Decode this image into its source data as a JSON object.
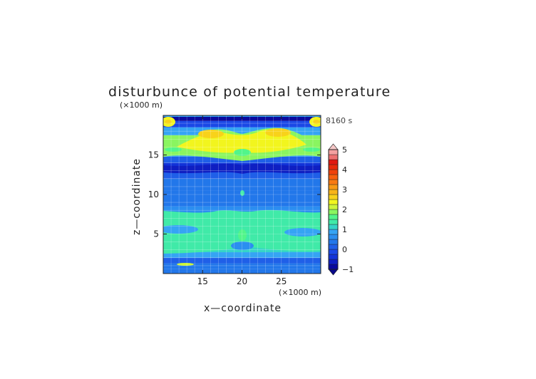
{
  "chart_data": {
    "type": "heatmap",
    "title": "disturbunce of potential temperature",
    "time_label": "8160 s",
    "xlabel": "x—coordinate",
    "ylabel": "z—coordinate",
    "x_unit": "(×1000 m)",
    "y_unit": "(×1000 m)",
    "xlim": [
      10,
      30
    ],
    "ylim": [
      0,
      20
    ],
    "x_ticks": [
      15,
      20,
      25
    ],
    "y_ticks": [
      5,
      10,
      15
    ],
    "grid": true,
    "colorbar": {
      "min": -1,
      "max": 5,
      "step": 0.25,
      "tick_values": [
        -1,
        0,
        1,
        2,
        3,
        4,
        5
      ],
      "extend": "both",
      "colors": [
        "#0a0a9e",
        "#0f1fc2",
        "#1233d8",
        "#1a48e6",
        "#1f5fe8",
        "#2277ea",
        "#2b8ef0",
        "#35a4f4",
        "#34d4c8",
        "#40eaa8",
        "#52f58a",
        "#8af560",
        "#cdf53a",
        "#f2f51e",
        "#f8d21a",
        "#f8b418",
        "#f89a14",
        "#f87a12",
        "#f8600e",
        "#f0420c",
        "#e82a0a",
        "#e01810",
        "#ee7070",
        "#f4a0a0"
      ],
      "over_color": "#f6c8c8",
      "under_color": "#08088a"
    },
    "layers": [
      {
        "z_range": [
          0.0,
          0.6
        ],
        "theta": 0.3
      },
      {
        "z_range": [
          0.6,
          1.3
        ],
        "theta": 0.45
      },
      {
        "z_range": [
          1.3,
          2.0
        ],
        "theta": 0.15
      },
      {
        "z_range": [
          2.0,
          2.7
        ],
        "theta": 0.85
      },
      {
        "z_range": [
          2.7,
          6.3
        ],
        "theta": 1.05
      },
      {
        "z_range": [
          6.3,
          8.5
        ],
        "theta": 0.55
      },
      {
        "z_range": [
          8.5,
          10.5
        ],
        "theta": 0.4
      },
      {
        "z_range": [
          10.5,
          12.0
        ],
        "theta": 0.25
      },
      {
        "z_range": [
          12.0,
          13.3
        ],
        "theta": 0.05
      },
      {
        "z_range": [
          13.3,
          14.0
        ],
        "theta": -0.35
      },
      {
        "z_range": [
          14.0,
          14.8
        ],
        "theta": 0.1
      },
      {
        "z_range": [
          14.8,
          15.8
        ],
        "theta": 0.95
      },
      {
        "z_range": [
          15.8,
          17.5
        ],
        "theta": 1.85
      },
      {
        "z_range": [
          17.5,
          18.5
        ],
        "theta": 0.9
      },
      {
        "z_range": [
          18.5,
          19.3
        ],
        "theta": -0.2
      },
      {
        "z_range": [
          19.3,
          20.0
        ],
        "theta": -0.85
      }
    ]
  }
}
